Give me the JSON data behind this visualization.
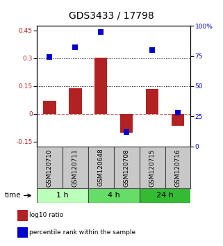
{
  "title": "GDS3433 / 17798",
  "categories": [
    "GSM120710",
    "GSM120711",
    "GSM120648",
    "GSM120708",
    "GSM120715",
    "GSM120716"
  ],
  "log10_ratio": [
    0.07,
    0.14,
    0.305,
    -0.1,
    0.135,
    -0.065
  ],
  "percentile_rank": [
    74,
    82,
    95,
    12,
    80,
    28
  ],
  "bar_color": "#b22222",
  "dot_color": "#0000cc",
  "ylim_left": [
    -0.175,
    0.475
  ],
  "ylim_right": [
    0,
    100
  ],
  "yticks_left": [
    -0.15,
    0.0,
    0.15,
    0.3,
    0.45
  ],
  "yticks_right": [
    0,
    25,
    50,
    75,
    100
  ],
  "hline_y": [
    0.15,
    0.3
  ],
  "groups": [
    {
      "label": "1 h",
      "color": "#bbffbb"
    },
    {
      "label": "4 h",
      "color": "#66dd66"
    },
    {
      "label": "24 h",
      "color": "#33bb33"
    }
  ],
  "time_label": "time",
  "legend_items": [
    {
      "label": "log10 ratio",
      "color": "#b22222"
    },
    {
      "label": "percentile rank within the sample",
      "color": "#0000cc"
    }
  ],
  "bar_width": 0.5,
  "dot_size": 28,
  "title_fontsize": 10,
  "tick_fontsize": 6.5,
  "legend_fontsize": 6.5,
  "group_label_fontsize": 8,
  "time_fontsize": 7.5,
  "xlabel_gray": "#cccccc"
}
